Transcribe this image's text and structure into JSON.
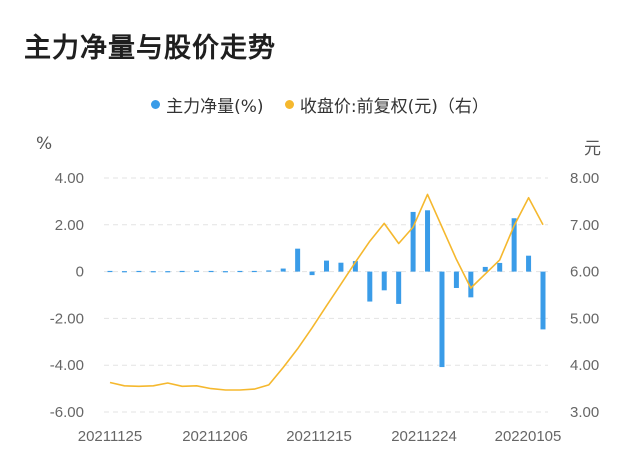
{
  "title": "主力净量与股价走势",
  "legend": {
    "series1": "主力净量(%)",
    "series2": "收盘价:前复权(元)（右）"
  },
  "colors": {
    "bar": "#3a9ce8",
    "line": "#f5b82e",
    "grid": "#e3e3e3"
  },
  "units": {
    "left": "%",
    "right": "元"
  },
  "chart_data": {
    "type": "bar",
    "x_tick_labels": [
      "20211125",
      "20211206",
      "20211215",
      "20211224",
      "20220105"
    ],
    "y_left": {
      "lim": [
        -6,
        4
      ],
      "ticks": [
        "4.00",
        "2.00",
        "0",
        "-2.00",
        "-4.00",
        "-6.00"
      ]
    },
    "y_right": {
      "lim": [
        3,
        8
      ],
      "ticks": [
        "8.00",
        "7.00",
        "6.00",
        "5.00",
        "4.00",
        "3.00"
      ]
    },
    "series": [
      {
        "name": "主力净量(%)",
        "type": "bar",
        "axis": "left",
        "values": [
          0.03,
          0.02,
          0.03,
          0.02,
          0.02,
          0.03,
          0.04,
          0.03,
          0.02,
          0.03,
          0.03,
          0.05,
          0.13,
          0.98,
          -0.15,
          0.47,
          0.38,
          0.45,
          -1.28,
          -0.8,
          -1.38,
          2.55,
          2.62,
          -4.08,
          -0.7,
          -1.1,
          0.2,
          0.37,
          2.28,
          0.68,
          -2.47
        ]
      },
      {
        "name": "收盘价:前复权(元)（右）",
        "type": "line",
        "axis": "right",
        "values": [
          3.63,
          3.56,
          3.55,
          3.56,
          3.62,
          3.55,
          3.56,
          3.5,
          3.47,
          3.47,
          3.49,
          3.58,
          3.95,
          4.35,
          4.8,
          5.27,
          5.73,
          6.2,
          6.65,
          7.03,
          6.6,
          6.95,
          7.65,
          6.95,
          6.26,
          5.65,
          5.95,
          6.25,
          6.98,
          7.58,
          7.0
        ]
      }
    ]
  }
}
